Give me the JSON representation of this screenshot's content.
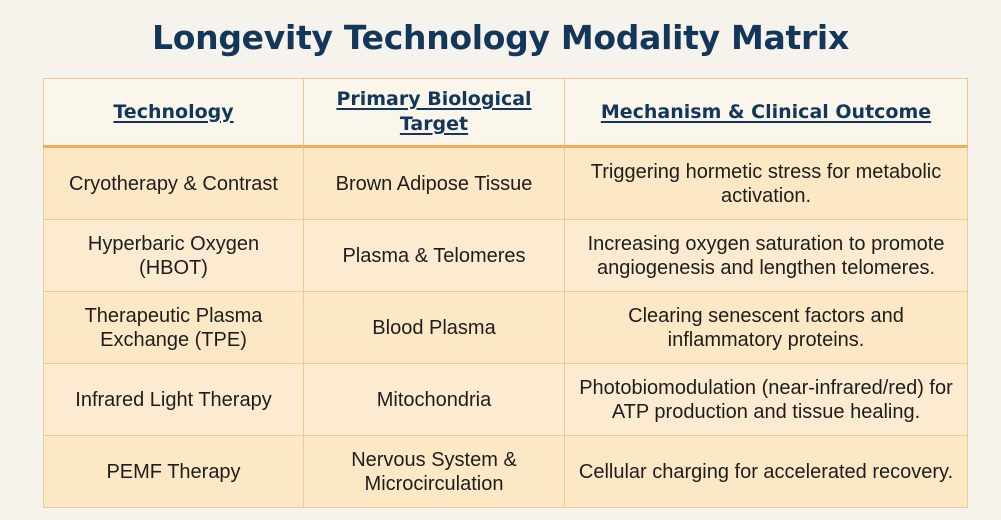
{
  "title": "Longevity Technology Modality Matrix",
  "colors": {
    "title": "#12375b",
    "header_bg": "#fbf6ec",
    "row_bg": "#fde8c6",
    "border": "#f0c98f",
    "accent": "#eeae5a"
  },
  "table": {
    "headers": [
      "Technology",
      "Primary Biological Target",
      "Mechanism & Clinical Outcome"
    ],
    "rows": [
      {
        "technology": "Cryotherapy & Contrast",
        "target": "Brown Adipose Tissue",
        "mechanism": "Triggering hormetic stress for metabolic activation."
      },
      {
        "technology": "Hyperbaric Oxygen (HBOT)",
        "target": "Plasma & Telomeres",
        "mechanism": "Increasing oxygen saturation to promote angiogenesis and lengthen telomeres."
      },
      {
        "technology": "Therapeutic Plasma Exchange (TPE)",
        "target": "Blood Plasma",
        "mechanism": "Clearing senescent factors and inflammatory proteins."
      },
      {
        "technology": "Infrared Light Therapy",
        "target": "Mitochondria",
        "mechanism": "Photobiomodulation (near-infrared/red) for ATP production and tissue healing."
      },
      {
        "technology": "PEMF Therapy",
        "target": "Nervous System & Microcirculation",
        "mechanism": "Cellular charging for accelerated recovery."
      }
    ]
  }
}
